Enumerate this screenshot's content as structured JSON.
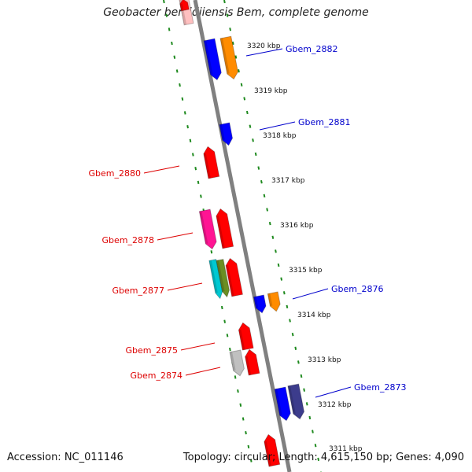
{
  "title": "Geobacter bemidjiensis Bem, complete genome",
  "footer": {
    "accession_label": "Accession: NC_011146",
    "stats_label": "Topology: circular; Length: 4,615,150 bp; Genes: 4,090"
  },
  "colors": {
    "backbone": "#808080",
    "track_dots": "#1f8a1f",
    "forward_label": "#0000cc",
    "reverse_label": "#dd0000",
    "red": "#ff0000",
    "blue": "#0000ff",
    "orange": "#ff8c00",
    "magenta": "#ff1493",
    "cyan": "#00c8d2",
    "olive": "#6b8e23",
    "gray": "#c0c0c0",
    "navy": "#3c3c8c",
    "pink": "#ffc0c0"
  },
  "kbp_ticks": [
    {
      "label": "3320 kbp"
    },
    {
      "label": "3319 kbp"
    },
    {
      "label": "3318 kbp"
    },
    {
      "label": "3317 kbp"
    },
    {
      "label": "3316 kbp"
    },
    {
      "label": "3315 kbp"
    },
    {
      "label": "3314 kbp"
    },
    {
      "label": "3313 kbp"
    },
    {
      "label": "3312 kbp"
    },
    {
      "label": "3311 kbp"
    }
  ],
  "gene_labels": [
    {
      "name": "Gbem_2882",
      "strand": "forward"
    },
    {
      "name": "Gbem_2881",
      "strand": "forward"
    },
    {
      "name": "Gbem_2880",
      "strand": "reverse"
    },
    {
      "name": "Gbem_2878",
      "strand": "reverse"
    },
    {
      "name": "Gbem_2877",
      "strand": "reverse"
    },
    {
      "name": "Gbem_2876",
      "strand": "forward"
    },
    {
      "name": "Gbem_2875",
      "strand": "reverse"
    },
    {
      "name": "Gbem_2874",
      "strand": "reverse"
    },
    {
      "name": "Gbem_2873",
      "strand": "forward"
    }
  ]
}
